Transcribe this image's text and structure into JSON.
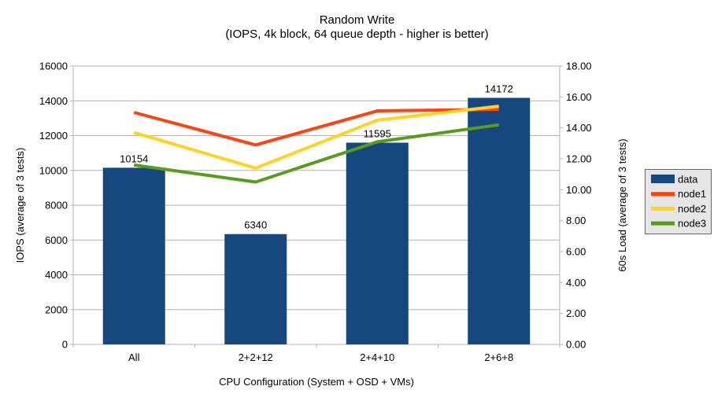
{
  "chart_data": {
    "type": "combo-bar-line",
    "title": "Random Write",
    "subtitle": "(IOPS, 4k block, 64 queue depth - higher is better)",
    "categories": [
      "All",
      "2+2+12",
      "2+4+10",
      "2+6+8"
    ],
    "series": [
      {
        "name": "data",
        "type": "bar",
        "axis": "left",
        "color": "#17477F",
        "values": [
          10154,
          6340,
          11595,
          14172
        ],
        "data_labels": [
          "10154",
          "6340",
          "11595",
          "14172"
        ]
      },
      {
        "name": "node1",
        "type": "line",
        "axis": "right",
        "color": "#FF420E",
        "values": [
          15.0,
          12.9,
          15.1,
          15.2
        ]
      },
      {
        "name": "node2",
        "type": "line",
        "axis": "right",
        "color": "#FFD320",
        "values": [
          13.7,
          11.4,
          14.5,
          15.4
        ]
      },
      {
        "name": "node3",
        "type": "line",
        "axis": "right",
        "color": "#579D1C",
        "values": [
          11.6,
          10.5,
          13.1,
          14.2
        ]
      }
    ],
    "left_axis": {
      "title": "IOPS (average of 3 tests)",
      "min": 0,
      "max": 16000,
      "step": 2000,
      "ticks": [
        "0",
        "2000",
        "4000",
        "6000",
        "8000",
        "10000",
        "12000",
        "14000",
        "16000"
      ]
    },
    "right_axis": {
      "title": "60s Load (average of 3 tests)",
      "min": 0,
      "max": 18,
      "step": 2,
      "ticks": [
        "0.00",
        "2.00",
        "4.00",
        "6.00",
        "8.00",
        "10.00",
        "12.00",
        "14.00",
        "16.00",
        "18.00"
      ]
    },
    "x_axis": {
      "title": "CPU Configuration (System + OSD + VMs)"
    },
    "legend": {
      "labels": [
        "data",
        "node1",
        "node2",
        "node3"
      ],
      "position": "right"
    },
    "layout_hints": {
      "grid": "horizontal, aligned to left axis",
      "legend_position": "middle-right"
    },
    "colors": {
      "grid": "#B3B3B3",
      "axis": "#B3B3B3",
      "text": "#000000",
      "legend_bg": "#E6E6E6",
      "legend_border": "#666666",
      "background": "#FFFFFF"
    }
  }
}
